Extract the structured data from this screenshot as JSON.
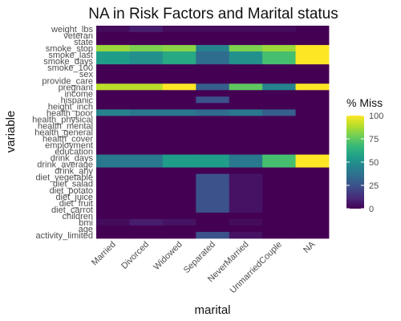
{
  "chart_data": {
    "type": "heatmap",
    "title": "NA in Risk Factors and Marital status",
    "xlabel": "marital",
    "ylabel": "variable",
    "x_categories": [
      "Married",
      "Divorced",
      "Widowed",
      "Separated",
      "NeverMarried",
      "UnmarriedCouple",
      "NA"
    ],
    "y_categories": [
      "weight_lbs",
      "veteran",
      "state",
      "smoke_stop",
      "smoke_last",
      "smoke_days",
      "smoke_100",
      "sex",
      "provide_care",
      "pregnant",
      "income",
      "hispanic",
      "height_inch",
      "health_poor",
      "health_physical",
      "health_mental",
      "health_general",
      "health_cover",
      "employment",
      "education",
      "drink_days",
      "drink_average",
      "drink_any",
      "diet_vegetable",
      "diet_salad",
      "diet_potato",
      "diet_juice",
      "diet_fruit",
      "diet_carrot",
      "children",
      "bmi",
      "age",
      "activity_limited"
    ],
    "values": [
      [
        3,
        8,
        3,
        3,
        3,
        3,
        0
      ],
      [
        0,
        0,
        0,
        0,
        0,
        0,
        0
      ],
      [
        0,
        0,
        0,
        0,
        0,
        0,
        0
      ],
      [
        85,
        80,
        82,
        45,
        80,
        85,
        100
      ],
      [
        55,
        50,
        60,
        35,
        50,
        70,
        100
      ],
      [
        55,
        50,
        60,
        35,
        50,
        70,
        100
      ],
      [
        0,
        0,
        0,
        0,
        0,
        0,
        0
      ],
      [
        0,
        0,
        0,
        0,
        0,
        0,
        0
      ],
      [
        0,
        0,
        0,
        0,
        0,
        0,
        0
      ],
      [
        90,
        90,
        100,
        30,
        75,
        45,
        100
      ],
      [
        0,
        0,
        0,
        0,
        0,
        0,
        0
      ],
      [
        0,
        0,
        0,
        25,
        0,
        0,
        0
      ],
      [
        0,
        0,
        0,
        0,
        0,
        0,
        0
      ],
      [
        45,
        40,
        40,
        35,
        40,
        30,
        0
      ],
      [
        0,
        0,
        0,
        0,
        0,
        0,
        0
      ],
      [
        0,
        0,
        0,
        0,
        0,
        0,
        0
      ],
      [
        0,
        0,
        0,
        0,
        0,
        0,
        0
      ],
      [
        0,
        0,
        0,
        0,
        0,
        0,
        0
      ],
      [
        0,
        0,
        0,
        0,
        0,
        0,
        0
      ],
      [
        0,
        0,
        0,
        0,
        0,
        0,
        0
      ],
      [
        40,
        40,
        55,
        55,
        40,
        70,
        100
      ],
      [
        40,
        40,
        55,
        55,
        40,
        70,
        100
      ],
      [
        0,
        0,
        0,
        0,
        0,
        0,
        0
      ],
      [
        0,
        0,
        0,
        25,
        5,
        0,
        0
      ],
      [
        0,
        0,
        0,
        25,
        5,
        0,
        0
      ],
      [
        0,
        0,
        0,
        25,
        5,
        0,
        0
      ],
      [
        0,
        0,
        0,
        25,
        5,
        0,
        0
      ],
      [
        0,
        0,
        0,
        25,
        5,
        0,
        0
      ],
      [
        0,
        0,
        0,
        25,
        5,
        0,
        0
      ],
      [
        0,
        0,
        0,
        0,
        0,
        0,
        0
      ],
      [
        3,
        8,
        5,
        0,
        3,
        0,
        0
      ],
      [
        0,
        0,
        0,
        0,
        0,
        0,
        0
      ],
      [
        0,
        0,
        0,
        25,
        5,
        0,
        0
      ]
    ],
    "legend": {
      "title": "% Miss",
      "ticks": [
        100,
        75,
        50,
        25,
        0
      ],
      "range": [
        0,
        100
      ],
      "palette": [
        "#440154",
        "#482878",
        "#3e4a89",
        "#31688e",
        "#26828e",
        "#1f9e89",
        "#35b779",
        "#6ece58",
        "#b5de2b",
        "#fde725"
      ],
      "placement": "right"
    },
    "grid": false
  }
}
